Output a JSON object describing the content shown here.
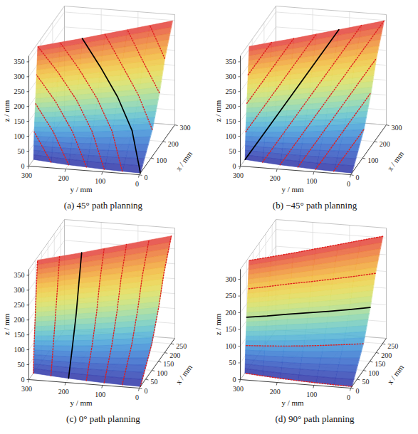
{
  "chart_data": [
    {
      "type": "surface3d",
      "title": "(a) 45° path planning",
      "xlabel": "x / mm",
      "ylabel": "y / mm",
      "zlabel": "z / mm",
      "xlim": [
        0,
        300
      ],
      "ylim": [
        0,
        300
      ],
      "zlim": [
        0,
        370
      ],
      "xticks": [
        0,
        100,
        200,
        300
      ],
      "yticks": [
        0,
        100,
        200,
        300
      ],
      "zticks": [
        0,
        50,
        100,
        150,
        200,
        250,
        300,
        350
      ],
      "grid": true,
      "color": "#e02020",
      "line_style": "dotted",
      "surface": {
        "y": [
          0,
          50,
          100,
          150,
          200,
          250,
          300
        ],
        "z": [
          0,
          90,
          180,
          270,
          360
        ],
        "x": [
          [
            10,
            12,
            15,
            20,
            25,
            32,
            40
          ],
          [
            110,
            95,
            82,
            70,
            60,
            52,
            45
          ],
          [
            170,
            148,
            128,
            110,
            92,
            72,
            55
          ],
          [
            215,
            188,
            162,
            138,
            115,
            90,
            65
          ],
          [
            280,
            245,
            210,
            175,
            140,
            108,
            75
          ]
        ]
      },
      "series": [
        {
          "x": [
            215,
            245
          ],
          "y": [
            0,
            50
          ],
          "z": [
            270,
            360
          ]
        },
        {
          "x": [
            170,
            188,
            210
          ],
          "y": [
            0,
            50,
            100
          ],
          "z": [
            180,
            270,
            360
          ]
        },
        {
          "x": [
            110,
            148,
            162,
            175
          ],
          "y": [
            0,
            50,
            100,
            150
          ],
          "z": [
            90,
            180,
            270,
            360
          ]
        },
        {
          "x": [
            10,
            95,
            128,
            138,
            140
          ],
          "y": [
            0,
            50,
            100,
            150,
            200
          ],
          "z": [
            0,
            90,
            180,
            270,
            360
          ],
          "color": "#000000",
          "line_style": "solid"
        },
        {
          "x": [
            12,
            82,
            110,
            115,
            108
          ],
          "y": [
            50,
            100,
            150,
            200,
            250
          ],
          "z": [
            0,
            90,
            180,
            270,
            360
          ]
        },
        {
          "x": [
            15,
            70,
            92,
            90,
            75
          ],
          "y": [
            100,
            150,
            200,
            250,
            300
          ],
          "z": [
            0,
            90,
            180,
            270,
            360
          ]
        },
        {
          "x": [
            20,
            60,
            72,
            65
          ],
          "y": [
            150,
            200,
            250,
            300
          ],
          "z": [
            0,
            90,
            180,
            270
          ]
        },
        {
          "x": [
            25,
            52,
            55
          ],
          "y": [
            200,
            250,
            300
          ],
          "z": [
            0,
            90,
            180
          ]
        },
        {
          "x": [
            32,
            45
          ],
          "y": [
            250,
            300
          ],
          "z": [
            0,
            90
          ]
        }
      ]
    },
    {
      "type": "surface3d",
      "title": "(b) −45° path planning",
      "xlabel": "x / mm",
      "ylabel": "y / mm",
      "zlabel": "z / mm",
      "xlim": [
        0,
        300
      ],
      "ylim": [
        0,
        300
      ],
      "zlim": [
        0,
        370
      ],
      "xticks": [
        0,
        100,
        200,
        300
      ],
      "yticks": [
        0,
        100,
        200,
        300
      ],
      "zticks": [
        0,
        50,
        100,
        150,
        200,
        250,
        300,
        350
      ],
      "grid": true,
      "color": "#e02020",
      "line_style": "dotted",
      "surface": {
        "y": [
          0,
          50,
          100,
          150,
          200,
          250,
          300
        ],
        "z": [
          0,
          90,
          180,
          270,
          360
        ],
        "x": [
          [
            10,
            12,
            15,
            20,
            25,
            32,
            40
          ],
          [
            110,
            95,
            82,
            70,
            60,
            52,
            45
          ],
          [
            170,
            148,
            128,
            110,
            92,
            72,
            55
          ],
          [
            215,
            188,
            162,
            138,
            115,
            90,
            65
          ],
          [
            280,
            245,
            210,
            175,
            140,
            108,
            75
          ]
        ]
      },
      "series": [
        {
          "x": [
            12,
            110
          ],
          "y": [
            50,
            0
          ],
          "z": [
            0,
            90
          ]
        },
        {
          "x": [
            15,
            95,
            170
          ],
          "y": [
            100,
            50,
            0
          ],
          "z": [
            0,
            90,
            180
          ]
        },
        {
          "x": [
            20,
            82,
            148,
            215
          ],
          "y": [
            150,
            100,
            50,
            0
          ],
          "z": [
            0,
            90,
            180,
            270
          ]
        },
        {
          "x": [
            25,
            70,
            128,
            188,
            280
          ],
          "y": [
            200,
            150,
            100,
            50,
            0
          ],
          "z": [
            0,
            90,
            180,
            270,
            360
          ]
        },
        {
          "x": [
            32,
            60,
            110,
            162,
            245
          ],
          "y": [
            250,
            200,
            150,
            100,
            50
          ],
          "z": [
            0,
            90,
            180,
            270,
            360
          ]
        },
        {
          "x": [
            40,
            52,
            92,
            138,
            210
          ],
          "y": [
            300,
            250,
            200,
            150,
            100
          ],
          "z": [
            0,
            90,
            180,
            270,
            360
          ],
          "color": "#000000",
          "line_style": "solid"
        },
        {
          "x": [
            45,
            72,
            115,
            175
          ],
          "y": [
            300,
            250,
            200,
            150
          ],
          "z": [
            90,
            180,
            270,
            360
          ]
        },
        {
          "x": [
            55,
            90,
            140
          ],
          "y": [
            300,
            250,
            200
          ],
          "z": [
            180,
            270,
            360
          ]
        },
        {
          "x": [
            65,
            108
          ],
          "y": [
            300,
            250
          ],
          "z": [
            270,
            360
          ]
        }
      ]
    },
    {
      "type": "surface3d",
      "title": "(c) 0° path planning",
      "xlabel": "x / mm",
      "ylabel": "y / mm",
      "zlabel": "z / mm",
      "xlim": [
        0,
        280
      ],
      "ylim": [
        0,
        300
      ],
      "zlim": [
        0,
        370
      ],
      "xticks": [
        0,
        50,
        100,
        150,
        200,
        250
      ],
      "yticks": [
        0,
        100,
        200,
        300
      ],
      "zticks": [
        0,
        50,
        100,
        150,
        200,
        250,
        300,
        350
      ],
      "grid": true,
      "color": "#e02020",
      "line_style": "dotted",
      "surface": {
        "y": [
          0,
          50,
          100,
          150,
          200,
          250,
          300
        ],
        "z": [
          0,
          90,
          180,
          270,
          360
        ],
        "x": [
          [
            9,
            11,
            14,
            18,
            23,
            29,
            36
          ],
          [
            99,
            86,
            74,
            63,
            54,
            47,
            41
          ],
          [
            153,
            133,
            115,
            99,
            83,
            65,
            50
          ],
          [
            194,
            169,
            146,
            124,
            104,
            81,
            59
          ],
          [
            252,
            221,
            189,
            158,
            126,
            97,
            68
          ]
        ]
      },
      "series": [
        {
          "x": [
            9,
            99,
            153,
            194,
            252
          ],
          "y": [
            0,
            0,
            0,
            0,
            0
          ],
          "z": [
            0,
            90,
            180,
            270,
            360
          ]
        },
        {
          "x": [
            11,
            86,
            133,
            169,
            221
          ],
          "y": [
            50,
            50,
            50,
            50,
            50
          ],
          "z": [
            0,
            90,
            180,
            270,
            360
          ]
        },
        {
          "x": [
            14,
            74,
            115,
            146,
            189
          ],
          "y": [
            100,
            100,
            100,
            100,
            100
          ],
          "z": [
            0,
            90,
            180,
            270,
            360
          ]
        },
        {
          "x": [
            18,
            63,
            99,
            124,
            158
          ],
          "y": [
            150,
            150,
            150,
            150,
            150
          ],
          "z": [
            0,
            90,
            180,
            270,
            360
          ]
        },
        {
          "x": [
            23,
            54,
            83,
            104,
            126
          ],
          "y": [
            200,
            200,
            200,
            200,
            200
          ],
          "z": [
            0,
            90,
            180,
            270,
            360
          ],
          "color": "#000000",
          "line_style": "solid"
        },
        {
          "x": [
            29,
            47,
            65,
            81,
            97
          ],
          "y": [
            250,
            250,
            250,
            250,
            250
          ],
          "z": [
            0,
            90,
            180,
            270,
            360
          ]
        },
        {
          "x": [
            36,
            41,
            50,
            59,
            68
          ],
          "y": [
            300,
            300,
            300,
            300,
            300
          ],
          "z": [
            0,
            90,
            180,
            270,
            360
          ]
        }
      ]
    },
    {
      "type": "surface3d",
      "title": "(d) 90° path planning",
      "xlabel": "x / mm",
      "ylabel": "y / mm",
      "zlabel": "z / mm",
      "xlim": [
        0,
        280
      ],
      "ylim": [
        0,
        300
      ],
      "zlim": [
        0,
        330
      ],
      "xticks": [
        0,
        50,
        100,
        150,
        200,
        250
      ],
      "yticks": [
        0,
        100,
        200,
        300
      ],
      "zticks": [
        0,
        50,
        100,
        150,
        200,
        250,
        300
      ],
      "grid": true,
      "color": "#e02020",
      "line_style": "dotted",
      "surface": {
        "y": [
          0,
          50,
          100,
          150,
          200,
          250,
          300
        ],
        "z": [
          0,
          80,
          160,
          240,
          320
        ],
        "x": [
          [
            9,
            11,
            14,
            18,
            23,
            29,
            36
          ],
          [
            99,
            86,
            74,
            63,
            54,
            47,
            41
          ],
          [
            153,
            133,
            115,
            99,
            83,
            65,
            50
          ],
          [
            194,
            169,
            146,
            124,
            104,
            81,
            59
          ],
          [
            252,
            221,
            189,
            158,
            126,
            97,
            68
          ]
        ]
      },
      "series": [
        {
          "x": [
            9,
            11,
            14,
            18,
            23,
            29,
            36
          ],
          "y": [
            0,
            50,
            100,
            150,
            200,
            250,
            300
          ],
          "z": [
            0,
            0,
            0,
            0,
            0,
            0,
            0
          ]
        },
        {
          "x": [
            99,
            86,
            74,
            63,
            54,
            47,
            41
          ],
          "y": [
            0,
            50,
            100,
            150,
            200,
            250,
            300
          ],
          "z": [
            80,
            80,
            80,
            80,
            80,
            80,
            80
          ]
        },
        {
          "x": [
            153,
            133,
            115,
            99,
            83,
            65,
            50
          ],
          "y": [
            0,
            50,
            100,
            150,
            200,
            250,
            300
          ],
          "z": [
            160,
            160,
            160,
            160,
            160,
            160,
            160
          ],
          "color": "#000000",
          "line_style": "solid"
        },
        {
          "x": [
            194,
            169,
            146,
            124,
            104,
            81,
            59
          ],
          "y": [
            0,
            50,
            100,
            150,
            200,
            250,
            300
          ],
          "z": [
            240,
            240,
            240,
            240,
            240,
            240,
            240
          ]
        },
        {
          "x": [
            252,
            221,
            189,
            158,
            126,
            97,
            68
          ],
          "y": [
            0,
            50,
            100,
            150,
            200,
            250,
            300
          ],
          "z": [
            320,
            320,
            320,
            320,
            320,
            320,
            320
          ]
        }
      ]
    }
  ]
}
